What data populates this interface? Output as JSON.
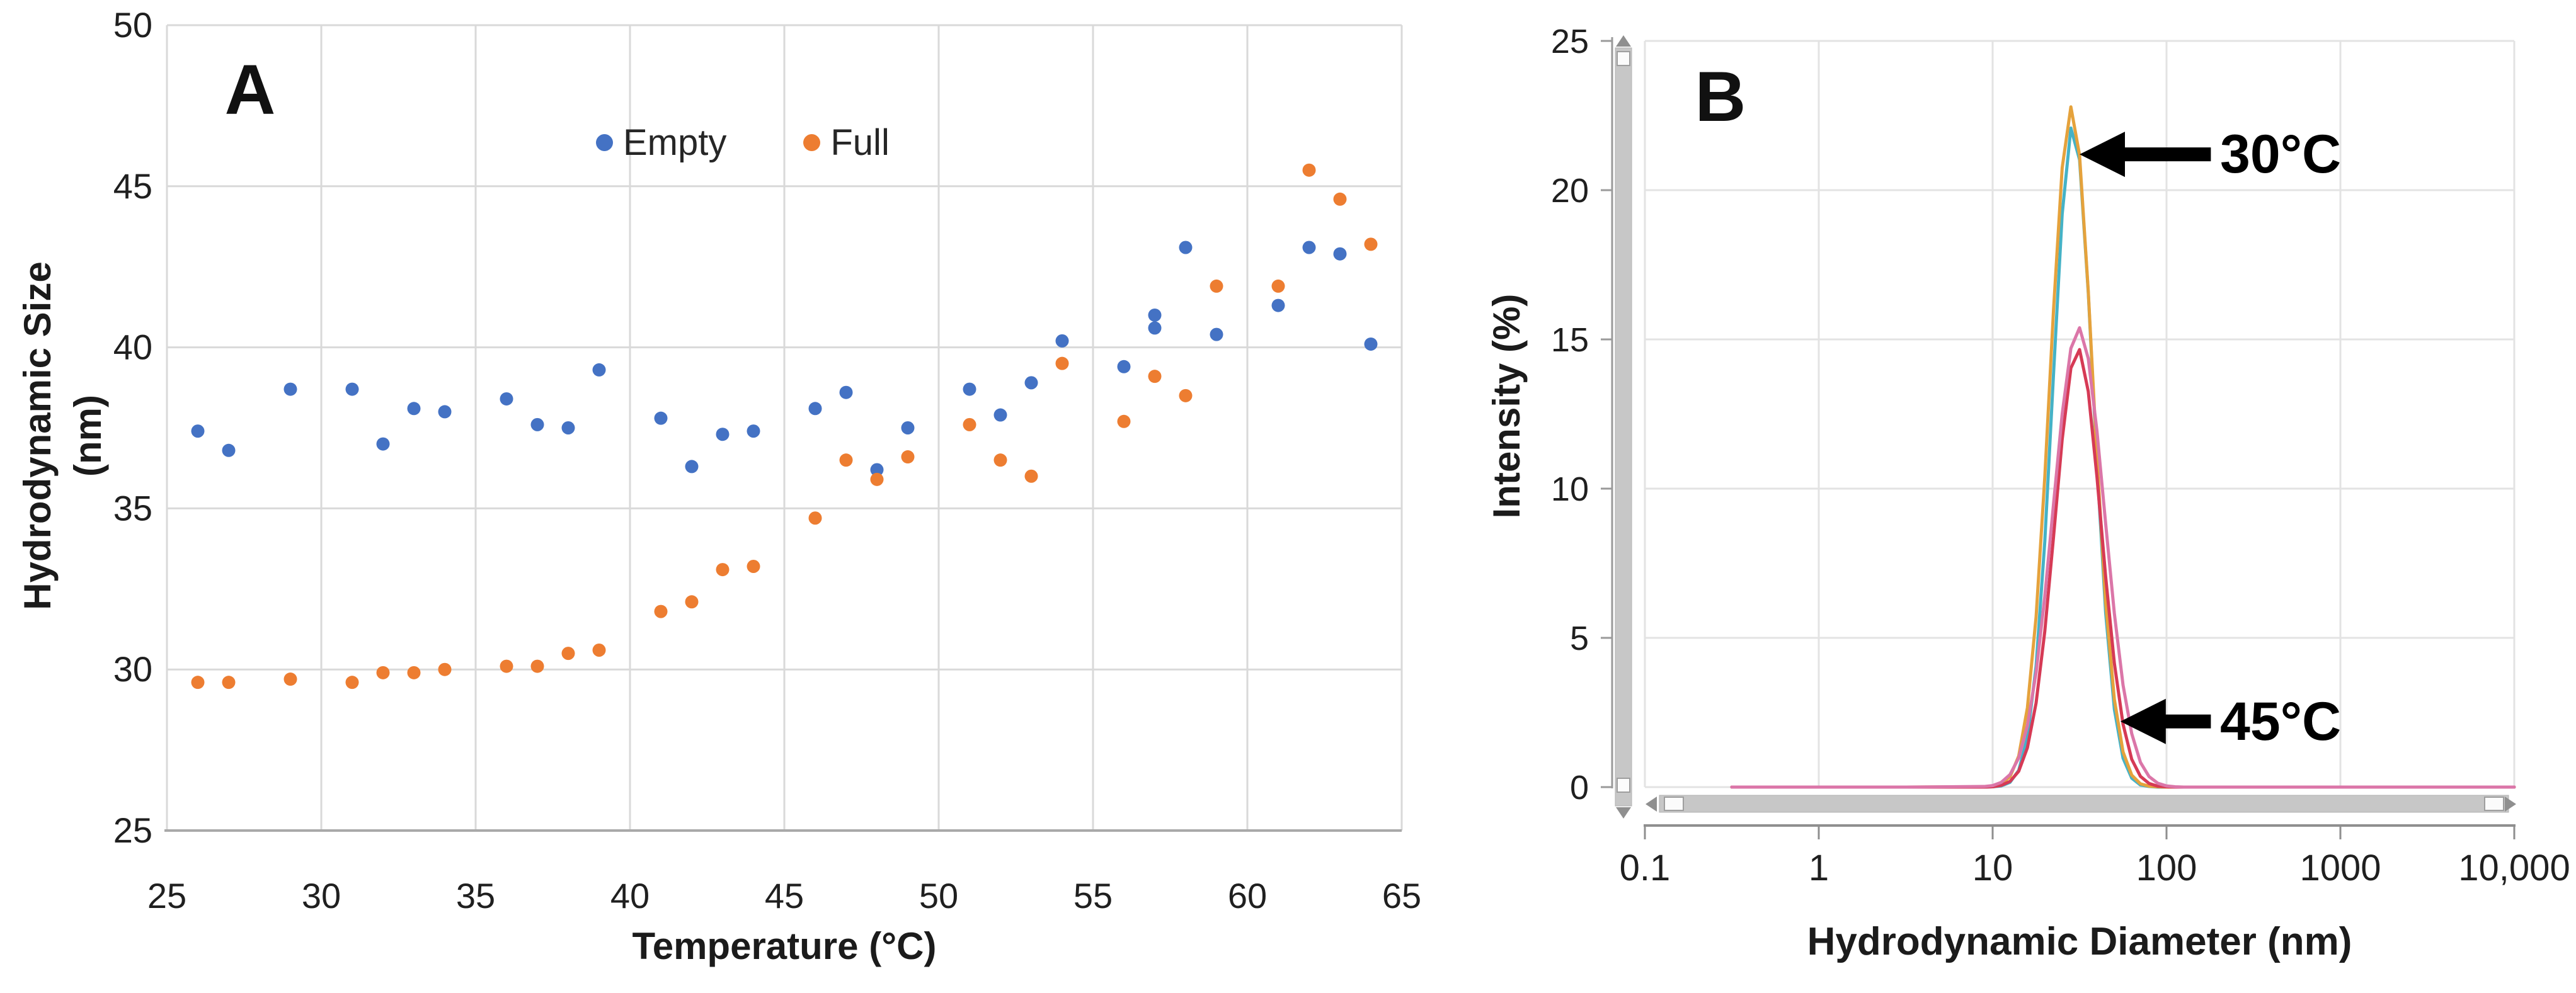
{
  "chart_data": [
    {
      "id": "panel_a",
      "type": "scatter",
      "panel_label": "A",
      "xlabel": "Temperature (°C)",
      "ylabel": "Hydrodynamic Size (nm)",
      "xlim": [
        25,
        65
      ],
      "ylim": [
        25,
        50
      ],
      "x_ticks": [
        25,
        30,
        35,
        40,
        45,
        50,
        55,
        60,
        65
      ],
      "y_ticks": [
        25,
        30,
        35,
        40,
        45,
        50
      ],
      "grid": true,
      "legend_position": "top-center",
      "series": [
        {
          "name": "Empty",
          "color": "#4472C4",
          "points": [
            [
              26,
              37.4
            ],
            [
              27,
              36.8
            ],
            [
              29,
              38.7
            ],
            [
              31,
              38.7
            ],
            [
              32,
              37.0
            ],
            [
              33,
              38.1
            ],
            [
              34,
              38.0
            ],
            [
              36,
              38.4
            ],
            [
              37,
              37.6
            ],
            [
              38,
              37.5
            ],
            [
              39,
              39.3
            ],
            [
              41,
              37.8
            ],
            [
              42,
              36.3
            ],
            [
              43,
              37.3
            ],
            [
              44,
              37.4
            ],
            [
              46,
              38.1
            ],
            [
              47,
              38.6
            ],
            [
              48,
              36.2
            ],
            [
              49,
              37.5
            ],
            [
              51,
              38.7
            ],
            [
              52,
              37.9
            ],
            [
              53,
              38.9
            ],
            [
              54,
              40.2
            ],
            [
              56,
              39.4
            ],
            [
              57,
              41.0
            ],
            [
              57,
              40.6
            ],
            [
              58,
              43.1
            ],
            [
              59,
              40.4
            ],
            [
              61,
              41.3
            ],
            [
              62,
              43.1
            ],
            [
              63,
              42.9
            ],
            [
              64,
              40.1
            ]
          ]
        },
        {
          "name": "Full",
          "color": "#ED7D31",
          "points": [
            [
              26,
              29.6
            ],
            [
              27,
              29.6
            ],
            [
              29,
              29.7
            ],
            [
              31,
              29.6
            ],
            [
              32,
              29.9
            ],
            [
              33,
              29.9
            ],
            [
              34,
              30.0
            ],
            [
              36,
              30.1
            ],
            [
              37,
              30.1
            ],
            [
              38,
              30.5
            ],
            [
              39,
              30.6
            ],
            [
              41,
              31.8
            ],
            [
              42,
              32.1
            ],
            [
              43,
              33.1
            ],
            [
              44,
              33.2
            ],
            [
              46,
              34.7
            ],
            [
              47,
              36.5
            ],
            [
              48,
              35.9
            ],
            [
              49,
              36.6
            ],
            [
              51,
              37.6
            ],
            [
              52,
              36.5
            ],
            [
              53,
              36.0
            ],
            [
              54,
              39.5
            ],
            [
              56,
              37.7
            ],
            [
              57,
              39.1
            ],
            [
              58,
              38.5
            ],
            [
              59,
              41.9
            ],
            [
              61,
              41.9
            ],
            [
              62,
              45.5
            ],
            [
              63,
              44.6
            ],
            [
              64,
              43.2
            ]
          ]
        }
      ]
    },
    {
      "id": "panel_b",
      "type": "line",
      "panel_label": "B",
      "xlabel": "Hydrodynamic Diameter (nm)",
      "ylabel": "Intensity (%)",
      "x_scale": "log",
      "xlim_log": [
        -1,
        4
      ],
      "ylim": [
        0,
        25
      ],
      "x_ticks": [
        {
          "label": "0.1",
          "log": -1
        },
        {
          "label": "1",
          "log": 0
        },
        {
          "label": "10",
          "log": 1
        },
        {
          "label": "100",
          "log": 2
        },
        {
          "label": "1000",
          "log": 3
        },
        {
          "label": "10,000",
          "log": 4
        }
      ],
      "y_ticks": [
        0,
        5,
        10,
        15,
        20,
        25
      ],
      "grid": true,
      "log_d_grid": [
        -0.5,
        0.5,
        0.95,
        1.0,
        1.05,
        1.1,
        1.15,
        1.2,
        1.25,
        1.3,
        1.35,
        1.4,
        1.45,
        1.5,
        1.55,
        1.6,
        1.65,
        1.7,
        1.75,
        1.8,
        1.85,
        1.9,
        1.95,
        2.0,
        2.05,
        2.1,
        2.3,
        2.6,
        3.0,
        3.6,
        4.0
      ],
      "series": [
        {
          "name": "30°C",
          "color": "#45B2C6",
          "peak_nm": 29.0,
          "peak_intensity": 22.2,
          "values": [
            0,
            0,
            0,
            0.01,
            0.04,
            0.16,
            0.56,
            1.66,
            4.06,
            8.23,
            13.82,
            19.2,
            22.08,
            21.02,
            16.57,
            10.81,
            5.84,
            2.61,
            0.97,
            0.3,
            0.07,
            0.02,
            0,
            0,
            0,
            0,
            0,
            0,
            0,
            0,
            0
          ]
        },
        {
          "name": "30°C",
          "color": "#E5A23C",
          "peak_nm": 28.4,
          "peak_intensity": 22.8,
          "values": [
            0,
            0,
            0.01,
            0.02,
            0.1,
            0.35,
            1.04,
            2.66,
            5.71,
            10.39,
            15.97,
            20.75,
            22.79,
            21.17,
            16.62,
            11.03,
            6.19,
            2.94,
            1.18,
            0.4,
            0.11,
            0.03,
            0.01,
            0,
            0,
            0,
            0,
            0,
            0,
            0,
            0
          ]
        },
        {
          "name": "45°C",
          "color": "#D63A55",
          "peak_nm": 30.9,
          "peak_intensity": 14.7,
          "values": [
            0,
            0,
            0,
            0.01,
            0.06,
            0.19,
            0.53,
            1.32,
            2.82,
            5.22,
            8.37,
            11.65,
            14.04,
            14.66,
            13.26,
            10.39,
            7.05,
            4.15,
            2.11,
            0.93,
            0.36,
            0.12,
            0.03,
            0.01,
            0,
            0,
            0,
            0,
            0,
            0,
            0
          ]
        },
        {
          "name": "45°C",
          "color": "#DB76A8",
          "peak_nm": 31.3,
          "peak_intensity": 15.4,
          "values": [
            0,
            0,
            0.02,
            0.05,
            0.16,
            0.42,
            0.98,
            2.06,
            3.84,
            6.39,
            9.47,
            12.5,
            14.7,
            15.39,
            14.36,
            11.93,
            8.83,
            5.82,
            3.42,
            1.79,
            0.83,
            0.35,
            0.13,
            0.04,
            0.01,
            0,
            0,
            0,
            0,
            0,
            0
          ]
        }
      ],
      "annotations": [
        {
          "label": "30°C",
          "tip_log_d": 1.5,
          "y": 21.2,
          "tail_log_d": 2.255
        },
        {
          "label": "45°C",
          "tip_log_d": 1.735,
          "y": 2.2,
          "tail_log_d": 2.255
        }
      ]
    }
  ]
}
